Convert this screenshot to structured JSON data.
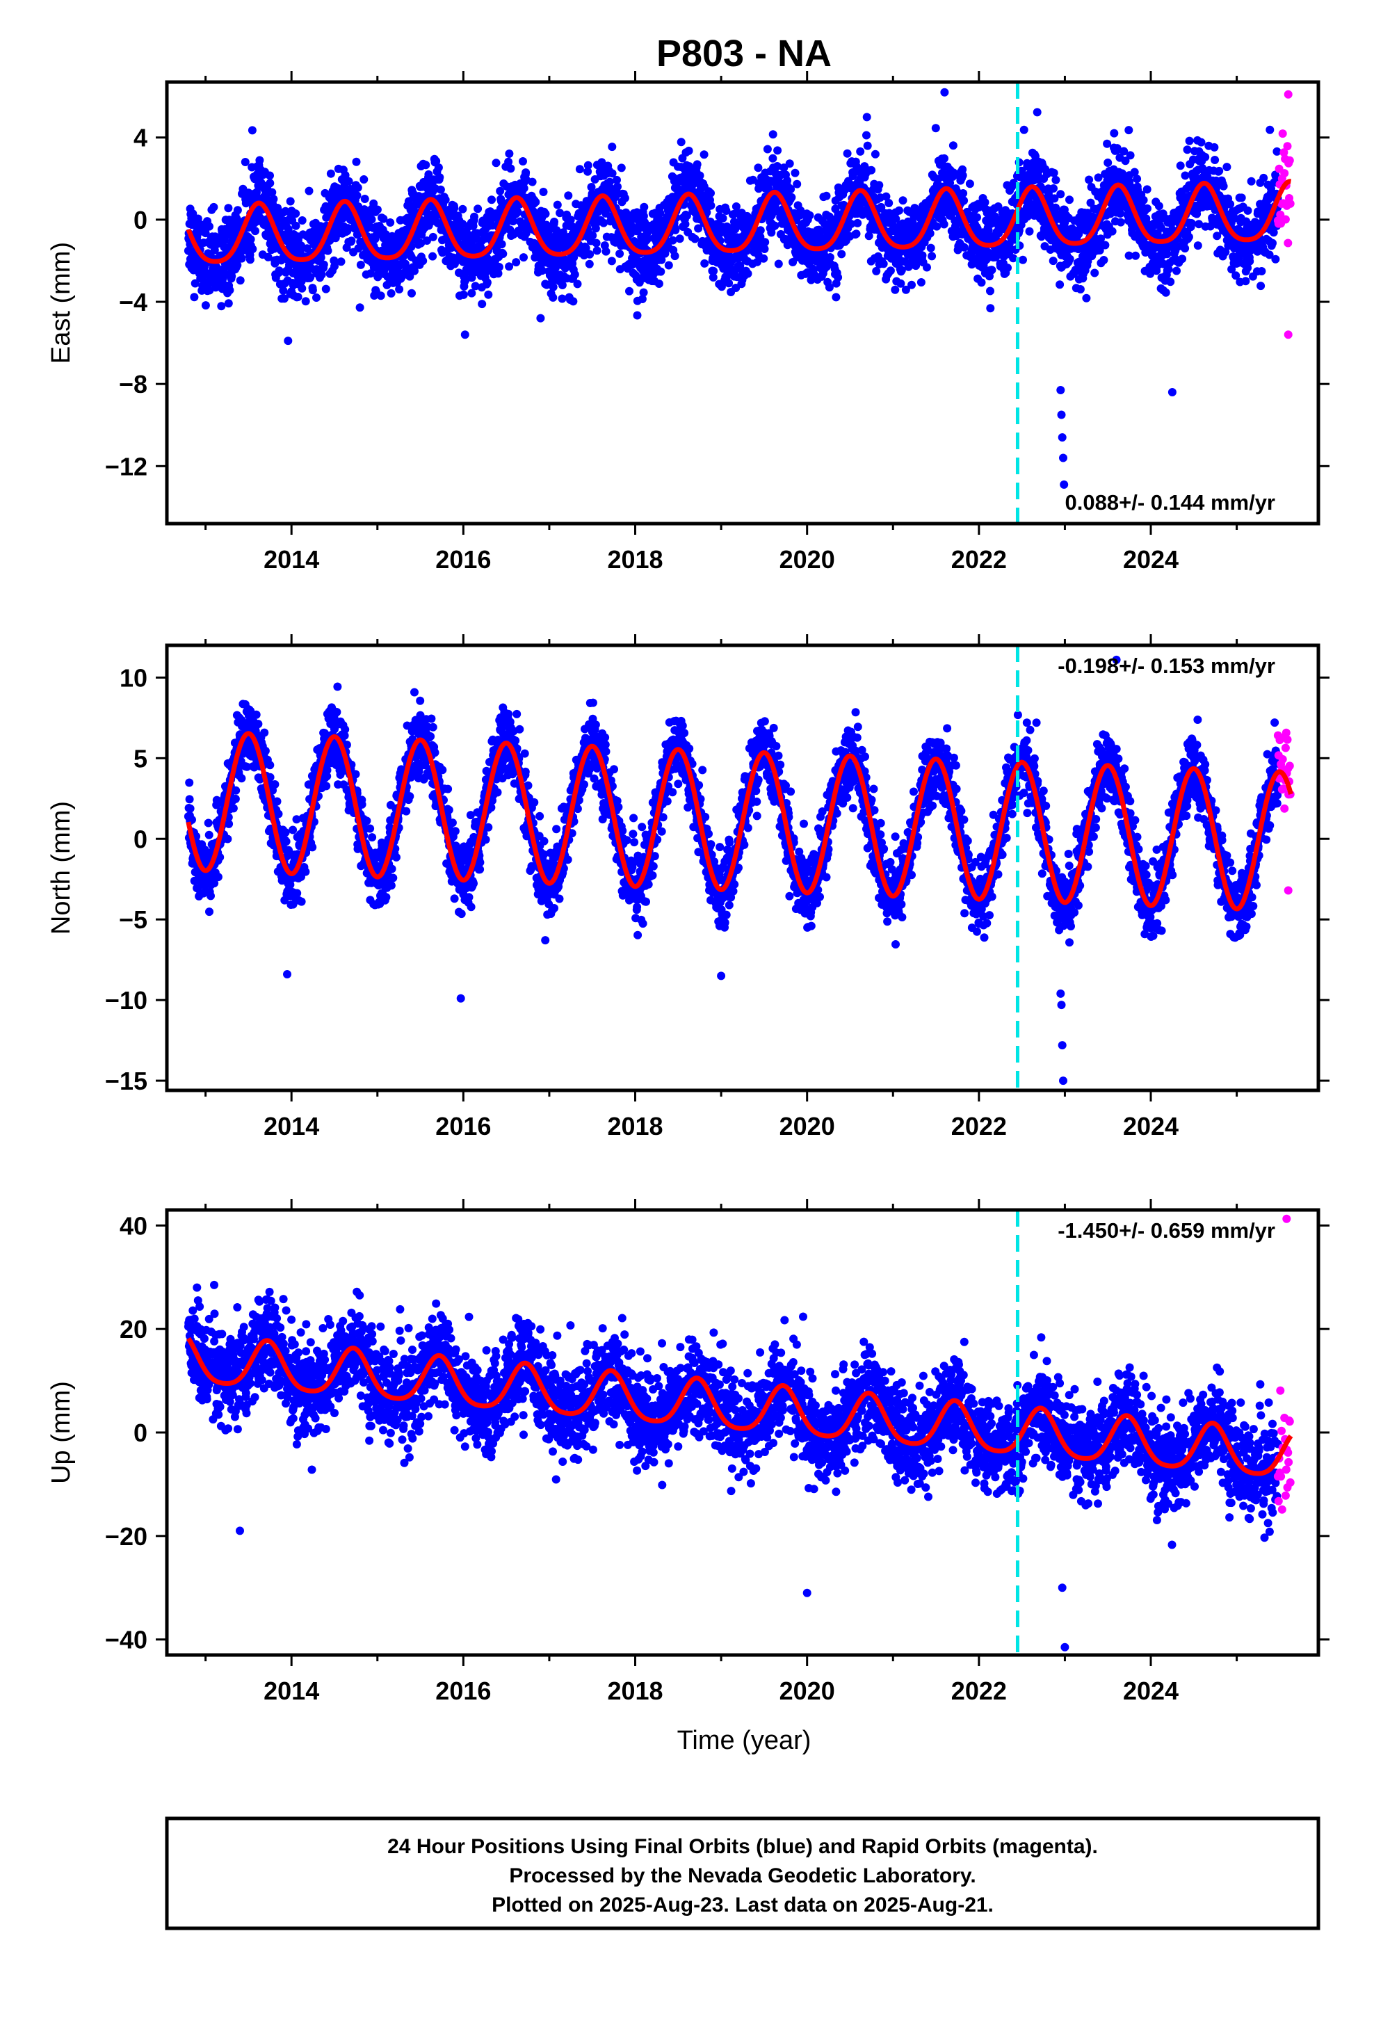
{
  "figure": {
    "title": "P803 - NA",
    "xlabel": "Time (year)",
    "footer": [
      "24 Hour Positions Using Final Orbits (blue) and Rapid Orbits (magenta).",
      "Processed by the Nevada Geodetic Laboratory.",
      "Plotted on 2025-Aug-23. Last data on 2025-Aug-21."
    ],
    "colors": {
      "final_orbits": "#0000ff",
      "rapid_orbits": "#ff00ff",
      "model_fit": "#ff0000",
      "equipment_change_line": "#00e5e5"
    }
  },
  "chart_data": [
    {
      "type": "scatter",
      "ylabel": "East (mm)",
      "xlim": [
        2012.55,
        2025.95
      ],
      "ylim": [
        -14.8,
        6.7
      ],
      "yticks": [
        4,
        0,
        -4,
        -8,
        -12
      ],
      "ytick_labels": [
        "4",
        "0",
        "−4",
        "−8",
        "−12"
      ],
      "xticks": [
        2014,
        2016,
        2018,
        2020,
        2022,
        2024
      ],
      "xtick_labels": [
        "2014",
        "2016",
        "2018",
        "2020",
        "2022",
        "2024"
      ],
      "rate_text": "0.088+/- 0.144 mm/yr",
      "rate_position": "bottom-right",
      "vertical_line_x": 2022.45,
      "data_span": [
        2012.8,
        2025.63
      ],
      "rapid_span": [
        2025.48,
        2025.63
      ],
      "model": {
        "offset": -0.35,
        "trend": 0.088,
        "annual_amp": 1.4,
        "annual_phase": 2013.62,
        "semiannual_amp": 0.25,
        "noise_sd": 1.0
      },
      "outliers": [
        [
          2013.96,
          -5.9
        ],
        [
          2016.02,
          -5.6
        ],
        [
          2022.95,
          -8.3
        ],
        [
          2022.96,
          -9.5
        ],
        [
          2022.97,
          -10.6
        ],
        [
          2022.98,
          -11.6
        ],
        [
          2022.99,
          -12.9
        ],
        [
          2024.25,
          -8.4
        ],
        [
          2021.6,
          6.2
        ],
        [
          2025.6,
          6.1
        ],
        [
          2025.6,
          -5.6
        ]
      ]
    },
    {
      "type": "scatter",
      "ylabel": "North (mm)",
      "xlim": [
        2012.55,
        2025.95
      ],
      "ylim": [
        -15.6,
        12.0
      ],
      "yticks": [
        10,
        5,
        0,
        -5,
        -10,
        -15
      ],
      "ytick_labels": [
        "10",
        "5",
        "0",
        "−5",
        "−10",
        "−15"
      ],
      "xticks": [
        2014,
        2016,
        2018,
        2020,
        2022,
        2024
      ],
      "xtick_labels": [
        "2014",
        "2016",
        "2018",
        "2020",
        "2022",
        "2024"
      ],
      "rate_text": "-0.198+/- 0.153 mm/yr",
      "rate_position": "top-right",
      "vertical_line_x": 2022.45,
      "data_span": [
        2012.8,
        2025.63
      ],
      "rapid_span": [
        2025.48,
        2025.63
      ],
      "model": {
        "offset": 1.1,
        "trend": -0.198,
        "annual_amp": 4.3,
        "annual_phase": 2013.5,
        "semiannual_amp": 0.0,
        "noise_sd": 1.1
      },
      "outliers": [
        [
          2013.95,
          -8.4
        ],
        [
          2015.97,
          -9.9
        ],
        [
          2019.0,
          -8.5
        ],
        [
          2022.95,
          -9.6
        ],
        [
          2022.96,
          -10.3
        ],
        [
          2022.97,
          -12.8
        ],
        [
          2022.98,
          -15.0
        ],
        [
          2023.6,
          11.1
        ],
        [
          2025.55,
          6.3
        ],
        [
          2025.6,
          -3.2
        ]
      ]
    },
    {
      "type": "scatter",
      "ylabel": "Up (mm)",
      "xlim": [
        2012.55,
        2025.95
      ],
      "ylim": [
        -43,
        43
      ],
      "yticks": [
        40,
        20,
        0,
        -20,
        -40
      ],
      "ytick_labels": [
        "40",
        "20",
        "0",
        "−20",
        "−40"
      ],
      "xticks": [
        2014,
        2016,
        2018,
        2020,
        2022,
        2024
      ],
      "xtick_labels": [
        "2014",
        "2016",
        "2018",
        "2020",
        "2022",
        "2024"
      ],
      "rate_text": "-1.450+/- 0.659 mm/yr",
      "rate_position": "top-right",
      "vertical_line_x": 2022.45,
      "data_span": [
        2012.8,
        2025.63
      ],
      "rapid_span": [
        2025.48,
        2025.63
      ],
      "model": {
        "offset": 4.5,
        "trend": -1.45,
        "annual_amp": 4.5,
        "annual_phase": 2013.72,
        "semiannual_amp": 0.8,
        "noise_sd": 4.5
      },
      "outliers": [
        [
          2013.4,
          -19
        ],
        [
          2020.0,
          -31
        ],
        [
          2022.97,
          -30
        ],
        [
          2023.0,
          -41.5
        ],
        [
          2025.58,
          41.3
        ],
        [
          2012.9,
          28
        ],
        [
          2013.1,
          28.5
        ]
      ]
    }
  ]
}
